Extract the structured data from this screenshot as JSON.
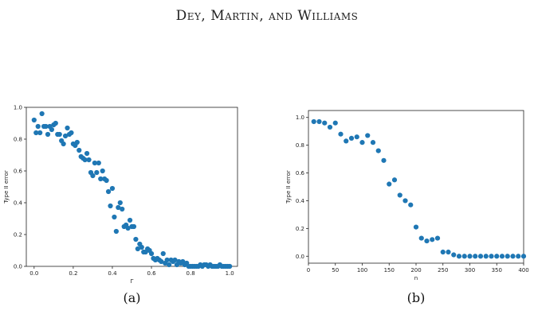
{
  "header": {
    "authors": "Dey, Martin, and Williams"
  },
  "chart_data": [
    {
      "type": "scatter",
      "caption": "(a)",
      "xlabel": "Γ",
      "ylabel": "Type II error",
      "xlim": [
        -0.04,
        1.04
      ],
      "ylim": [
        0.0,
        1.0
      ],
      "xticks": [
        0.0,
        0.2,
        0.4,
        0.6,
        0.8,
        1.0
      ],
      "xtick_labels": [
        "0.0",
        "0.2",
        "0.4",
        "0.6",
        "0.8",
        "1.0"
      ],
      "yticks": [
        0.0,
        0.2,
        0.4,
        0.6,
        0.8,
        1.0
      ],
      "ytick_labels": [
        "0.0",
        "0.2",
        "0.4",
        "0.6",
        "0.8",
        "1.0"
      ],
      "color": "#1f77b4",
      "grid": false,
      "x": [
        0.0,
        0.01,
        0.02,
        0.03,
        0.04,
        0.05,
        0.06,
        0.07,
        0.08,
        0.09,
        0.1,
        0.11,
        0.12,
        0.13,
        0.14,
        0.15,
        0.16,
        0.17,
        0.18,
        0.19,
        0.2,
        0.21,
        0.22,
        0.23,
        0.24,
        0.25,
        0.26,
        0.27,
        0.28,
        0.29,
        0.3,
        0.31,
        0.32,
        0.33,
        0.34,
        0.35,
        0.36,
        0.37,
        0.38,
        0.39,
        0.4,
        0.41,
        0.42,
        0.43,
        0.44,
        0.45,
        0.46,
        0.47,
        0.48,
        0.49,
        0.5,
        0.51,
        0.52,
        0.53,
        0.54,
        0.55,
        0.56,
        0.57,
        0.58,
        0.59,
        0.6,
        0.61,
        0.62,
        0.63,
        0.64,
        0.65,
        0.66,
        0.67,
        0.68,
        0.69,
        0.7,
        0.71,
        0.72,
        0.73,
        0.74,
        0.75,
        0.76,
        0.77,
        0.78,
        0.79,
        0.8,
        0.81,
        0.82,
        0.83,
        0.84,
        0.85,
        0.86,
        0.87,
        0.88,
        0.89,
        0.9,
        0.91,
        0.92,
        0.93,
        0.94,
        0.95,
        0.96,
        0.97,
        0.98,
        0.99,
        1.0
      ],
      "y": [
        0.92,
        0.84,
        0.88,
        0.84,
        0.96,
        0.88,
        0.88,
        0.83,
        0.88,
        0.86,
        0.89,
        0.9,
        0.83,
        0.83,
        0.79,
        0.77,
        0.82,
        0.87,
        0.83,
        0.84,
        0.77,
        0.76,
        0.78,
        0.73,
        0.69,
        0.68,
        0.67,
        0.71,
        0.67,
        0.59,
        0.57,
        0.65,
        0.59,
        0.65,
        0.55,
        0.6,
        0.55,
        0.54,
        0.47,
        0.38,
        0.49,
        0.31,
        0.22,
        0.37,
        0.4,
        0.36,
        0.25,
        0.26,
        0.24,
        0.29,
        0.25,
        0.25,
        0.17,
        0.11,
        0.14,
        0.12,
        0.09,
        0.09,
        0.11,
        0.1,
        0.08,
        0.05,
        0.04,
        0.05,
        0.04,
        0.03,
        0.08,
        0.02,
        0.04,
        0.01,
        0.04,
        0.03,
        0.04,
        0.01,
        0.03,
        0.02,
        0.03,
        0.01,
        0.02,
        0.0,
        0.0,
        0.0,
        0.0,
        0.0,
        0.0,
        0.01,
        0.0,
        0.01,
        0.01,
        0.0,
        0.01,
        0.0,
        0.0,
        0.0,
        0.0,
        0.01,
        0.0,
        0.0,
        0.0,
        0.0,
        0.0
      ]
    },
    {
      "type": "scatter",
      "caption": "(b)",
      "xlabel": "n",
      "ylabel": "Type II error",
      "xlim": [
        0,
        400
      ],
      "ylim": [
        -0.05,
        1.05
      ],
      "xticks": [
        0,
        50,
        100,
        150,
        200,
        250,
        300,
        350,
        400
      ],
      "xtick_labels": [
        "0",
        "50",
        "100",
        "150",
        "200",
        "250",
        "300",
        "350",
        "400"
      ],
      "yticks": [
        0.0,
        0.2,
        0.4,
        0.6,
        0.8,
        1.0
      ],
      "ytick_labels": [
        "0.0",
        "0.2",
        "0.4",
        "0.6",
        "0.8",
        "1.0"
      ],
      "color": "#1f77b4",
      "grid": false,
      "x": [
        10,
        20,
        30,
        40,
        50,
        60,
        70,
        80,
        90,
        100,
        110,
        120,
        130,
        140,
        150,
        160,
        170,
        180,
        190,
        200,
        210,
        220,
        230,
        240,
        250,
        260,
        270,
        280,
        290,
        300,
        310,
        320,
        330,
        340,
        350,
        360,
        370,
        380,
        390,
        400
      ],
      "y": [
        0.97,
        0.97,
        0.96,
        0.93,
        0.96,
        0.88,
        0.83,
        0.85,
        0.86,
        0.82,
        0.87,
        0.82,
        0.76,
        0.69,
        0.52,
        0.55,
        0.44,
        0.4,
        0.37,
        0.21,
        0.13,
        0.11,
        0.12,
        0.13,
        0.03,
        0.03,
        0.01,
        0.0,
        0.0,
        0.0,
        0.0,
        0.0,
        0.0,
        0.0,
        0.0,
        0.0,
        0.0,
        0.0,
        0.0,
        0.0
      ]
    }
  ]
}
